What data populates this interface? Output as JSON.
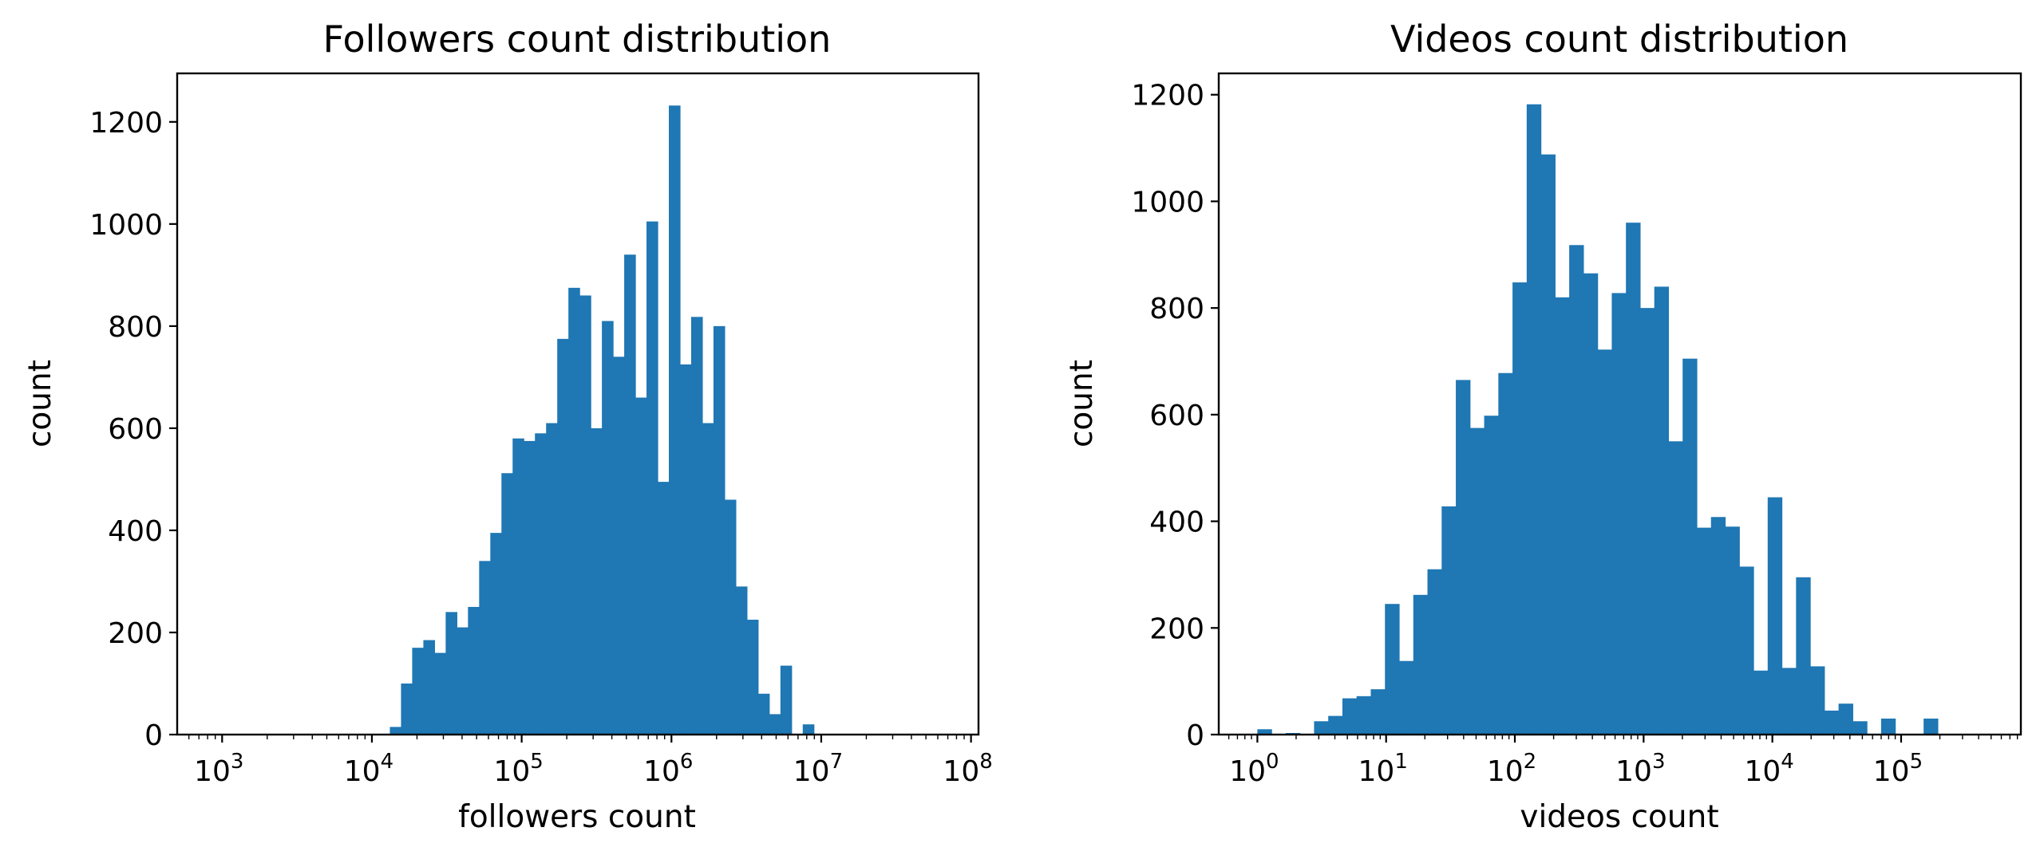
{
  "colors": {
    "bar": "#1f77b4",
    "axis": "#000000"
  },
  "chart_data": [
    {
      "type": "bar",
      "title": "Followers count distribution",
      "xlabel": "followers count",
      "ylabel": "count",
      "xscale": "log",
      "xlim_log10": [
        2.7,
        8.05
      ],
      "ylim": [
        0,
        1295
      ],
      "x_ticks": [
        {
          "base": "10",
          "exp": "3",
          "log": 3
        },
        {
          "base": "10",
          "exp": "4",
          "log": 4
        },
        {
          "base": "10",
          "exp": "5",
          "log": 5
        },
        {
          "base": "10",
          "exp": "6",
          "log": 6
        },
        {
          "base": "10",
          "exp": "7",
          "log": 7
        },
        {
          "base": "10",
          "exp": "8",
          "log": 8
        }
      ],
      "y_ticks": [
        {
          "value": 0,
          "label": "0"
        },
        {
          "value": 200,
          "label": "200"
        },
        {
          "value": 400,
          "label": "400"
        },
        {
          "value": 600,
          "label": "600"
        },
        {
          "value": 800,
          "label": "800"
        },
        {
          "value": 1000,
          "label": "1000"
        },
        {
          "value": 1200,
          "label": "1200"
        }
      ],
      "bins": {
        "log10_start": 4.12,
        "log10_width": 0.0745,
        "values": [
          15,
          100,
          170,
          185,
          160,
          240,
          210,
          250,
          340,
          395,
          512,
          580,
          575,
          590,
          610,
          775,
          875,
          860,
          600,
          810,
          740,
          940,
          660,
          1005,
          495,
          1232,
          725,
          818,
          610,
          800,
          460,
          290,
          225,
          80,
          40,
          135,
          0,
          20
        ]
      }
    },
    {
      "type": "bar",
      "title": "Videos count distribution",
      "xlabel": "videos count",
      "ylabel": "count",
      "xscale": "log",
      "xlim_log10": [
        -0.3,
        5.93
      ],
      "ylim": [
        0,
        1240
      ],
      "x_ticks": [
        {
          "base": "10",
          "exp": "0",
          "log": 0
        },
        {
          "base": "10",
          "exp": "1",
          "log": 1
        },
        {
          "base": "10",
          "exp": "2",
          "log": 2
        },
        {
          "base": "10",
          "exp": "3",
          "log": 3
        },
        {
          "base": "10",
          "exp": "4",
          "log": 4
        },
        {
          "base": "10",
          "exp": "5",
          "log": 5
        }
      ],
      "y_ticks": [
        {
          "value": 0,
          "label": "0"
        },
        {
          "value": 200,
          "label": "200"
        },
        {
          "value": 400,
          "label": "400"
        },
        {
          "value": 600,
          "label": "600"
        },
        {
          "value": 800,
          "label": "800"
        },
        {
          "value": 1000,
          "label": "1000"
        },
        {
          "value": 1200,
          "label": "1200"
        }
      ],
      "bins": {
        "log10_start": 0.0,
        "log10_width": 0.1101,
        "values": [
          10,
          0,
          3,
          0,
          25,
          35,
          68,
          72,
          85,
          245,
          138,
          262,
          310,
          428,
          665,
          575,
          598,
          678,
          848,
          1182,
          1088,
          820,
          918,
          865,
          722,
          828,
          960,
          800,
          840,
          550,
          705,
          388,
          408,
          390,
          315,
          120,
          445,
          125,
          295,
          128,
          45,
          58,
          25,
          0,
          30,
          0,
          0,
          30
        ]
      }
    }
  ]
}
